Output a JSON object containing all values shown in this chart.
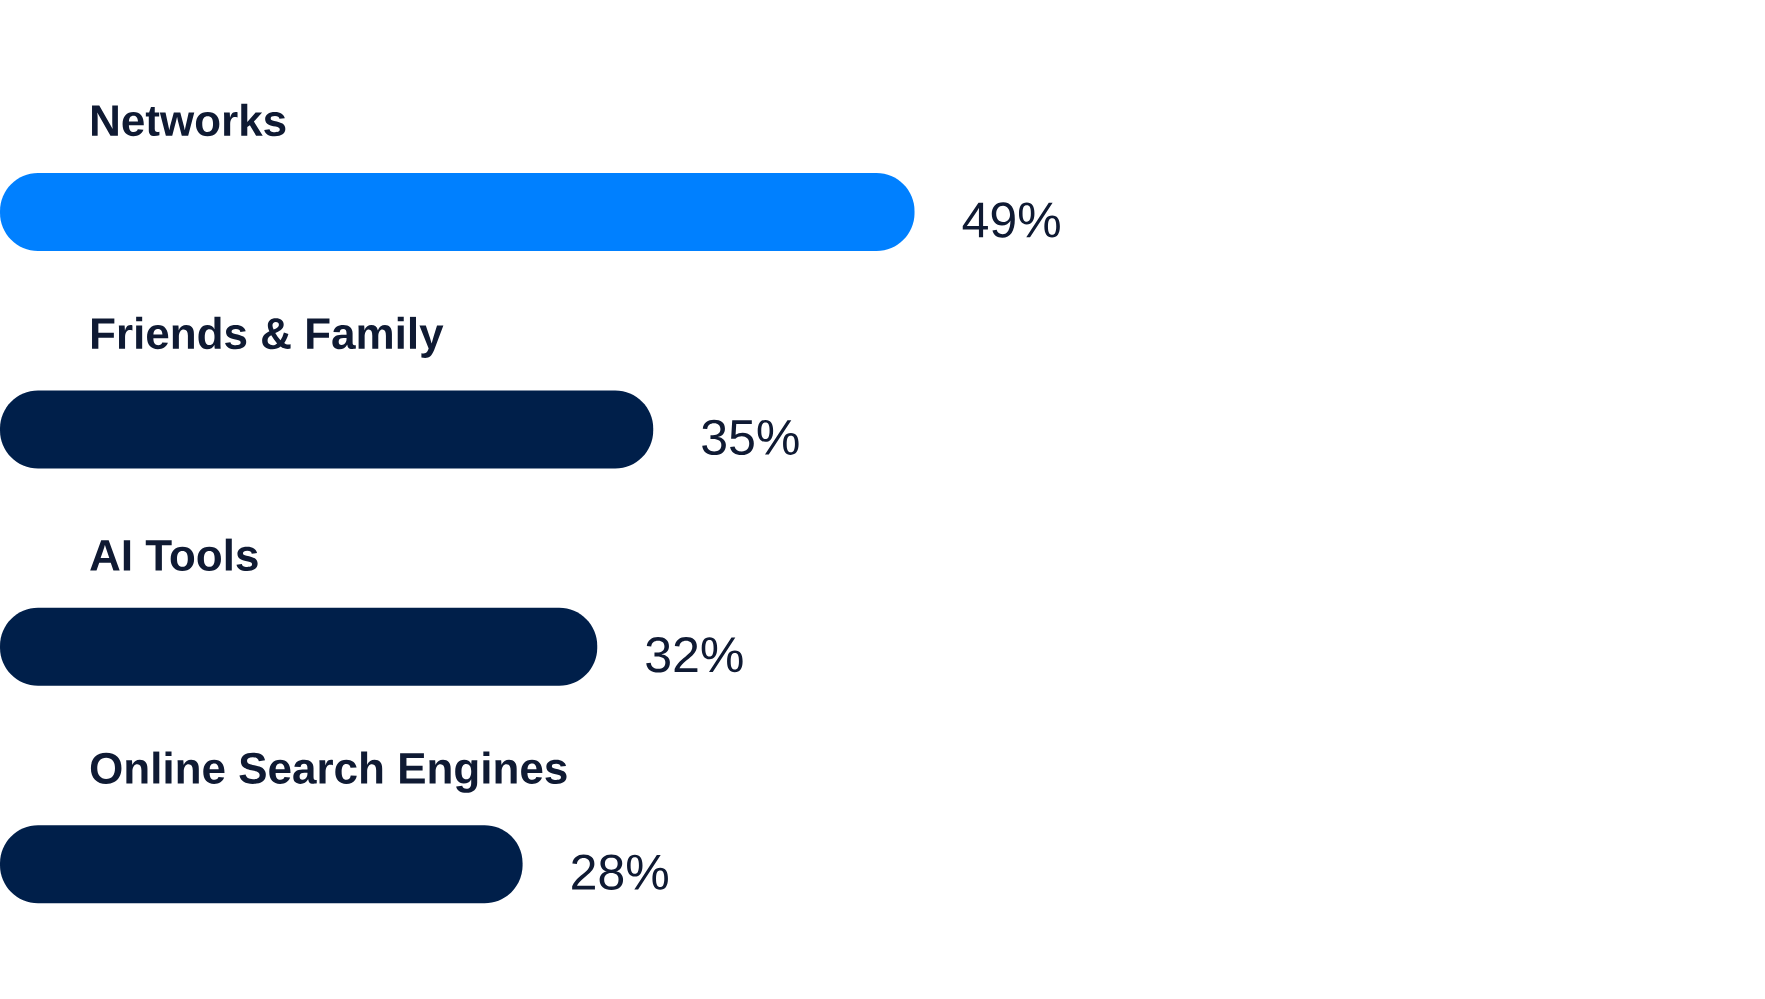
{
  "chart_data": {
    "type": "bar",
    "orientation": "horizontal",
    "categories": [
      "Networks",
      "Friends & Family",
      "AI Tools",
      "Online Search Engines"
    ],
    "values": [
      49,
      35,
      32,
      28
    ],
    "colors": [
      "#0080ff",
      "#001f4a",
      "#001f4a",
      "#001f4a"
    ],
    "value_labels": [
      "49%",
      "35%",
      "32%",
      "28%"
    ]
  }
}
